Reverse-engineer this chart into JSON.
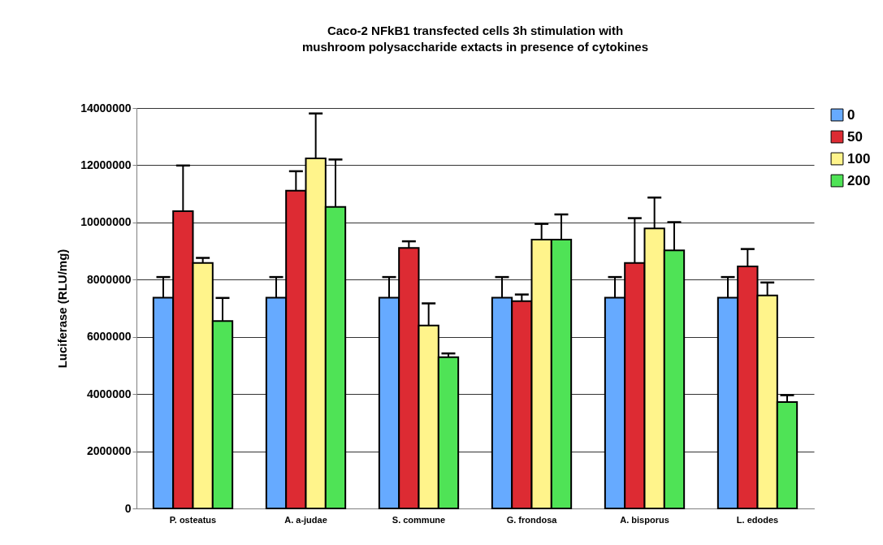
{
  "chart_data": {
    "type": "bar",
    "title": [
      "Caco-2  NFkB1 transfected cells 3h stimulation with",
      "mushroom polysaccharide extacts in presence of cytokines"
    ],
    "ylabel": "Luciferase (RLU/mg)",
    "categories": [
      "P. osteatus",
      "A. a-judae",
      "S. commune",
      "G. frondosa",
      "A. bisporus",
      "L. edodes"
    ],
    "series": [
      {
        "name": "0",
        "color": "#66aaff",
        "values": [
          7370000,
          7370000,
          7370000,
          7370000,
          7370000,
          7370000
        ],
        "errors": [
          [
            7370000,
            8090000
          ],
          [
            7370000,
            8090000
          ],
          [
            7370000,
            8090000
          ],
          [
            7370000,
            8090000
          ],
          [
            7370000,
            8090000
          ],
          [
            7370000,
            8090000
          ]
        ]
      },
      {
        "name": "50",
        "color": "#dd2b33",
        "values": [
          10390000,
          11110000,
          9110000,
          7250000,
          8580000,
          8460000
        ],
        "errors": [
          [
            10390000,
            11990000
          ],
          [
            11110000,
            11790000
          ],
          [
            9110000,
            9340000
          ],
          [
            7250000,
            7480000
          ],
          [
            8580000,
            10150000
          ],
          [
            8460000,
            9070000
          ]
        ]
      },
      {
        "name": "100",
        "color": "#fff48b",
        "values": [
          8580000,
          12240000,
          6400000,
          9400000,
          9790000,
          7450000
        ],
        "errors": [
          [
            8580000,
            8760000
          ],
          [
            12240000,
            13810000
          ],
          [
            6400000,
            7170000
          ],
          [
            9400000,
            9950000
          ],
          [
            9790000,
            10870000
          ],
          [
            7450000,
            7900000
          ]
        ]
      },
      {
        "name": "200",
        "color": "#4fe356",
        "values": [
          6550000,
          10540000,
          5290000,
          9400000,
          9020000,
          3720000
        ],
        "errors": [
          [
            6550000,
            7360000
          ],
          [
            10540000,
            12200000
          ],
          [
            5290000,
            5420000
          ],
          [
            9400000,
            10280000
          ],
          [
            9020000,
            10010000
          ],
          [
            3720000,
            3960000
          ]
        ]
      }
    ],
    "ylim": [
      0,
      14000000
    ],
    "yticks": [
      0,
      2000000,
      4000000,
      6000000,
      8000000,
      10000000,
      12000000,
      14000000
    ],
    "grid": "y",
    "legend": "right"
  }
}
